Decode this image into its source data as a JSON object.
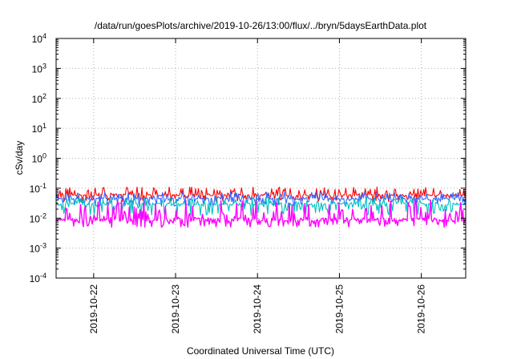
{
  "chart_data": {
    "type": "line",
    "title": "/data/run/goesPlots/archive/2019-10-26/13:00/flux/../bryn/5daysEarthData.plot",
    "xlabel": "Coordinated Universal Time (UTC)",
    "ylabel": "cSv/day",
    "yscale": "log",
    "ylim": [
      0.0001,
      10000
    ],
    "y_ticks": [
      {
        "value": 0.0001,
        "base": "10",
        "exp": "-4"
      },
      {
        "value": 0.001,
        "base": "10",
        "exp": "-3"
      },
      {
        "value": 0.01,
        "base": "10",
        "exp": "-2"
      },
      {
        "value": 0.1,
        "base": "10",
        "exp": "-1"
      },
      {
        "value": 1,
        "base": "10",
        "exp": "0"
      },
      {
        "value": 10,
        "base": "10",
        "exp": "1"
      },
      {
        "value": 100,
        "base": "10",
        "exp": "2"
      },
      {
        "value": 1000,
        "base": "10",
        "exp": "3"
      },
      {
        "value": 10000,
        "base": "10",
        "exp": "4"
      }
    ],
    "xlim": [
      "2019-10-21T13:00",
      "2019-10-26T13:00"
    ],
    "x_ticks": [
      "2019-10-22",
      "2019-10-23",
      "2019-10-24",
      "2019-10-25",
      "2019-10-26"
    ],
    "grid": true,
    "legend": "none",
    "series": [
      {
        "color": "#ff0000",
        "level": 0.06,
        "low": 0.035,
        "high": 0.11
      },
      {
        "color": "#3366ff",
        "level": 0.045,
        "low": 0.025,
        "high": 0.075
      },
      {
        "color": "#00c0c0",
        "level": 0.03,
        "low": 0.012,
        "high": 0.05
      },
      {
        "color": "#ff00ff",
        "level": 0.009,
        "low": 0.005,
        "high": 0.04
      }
    ]
  }
}
